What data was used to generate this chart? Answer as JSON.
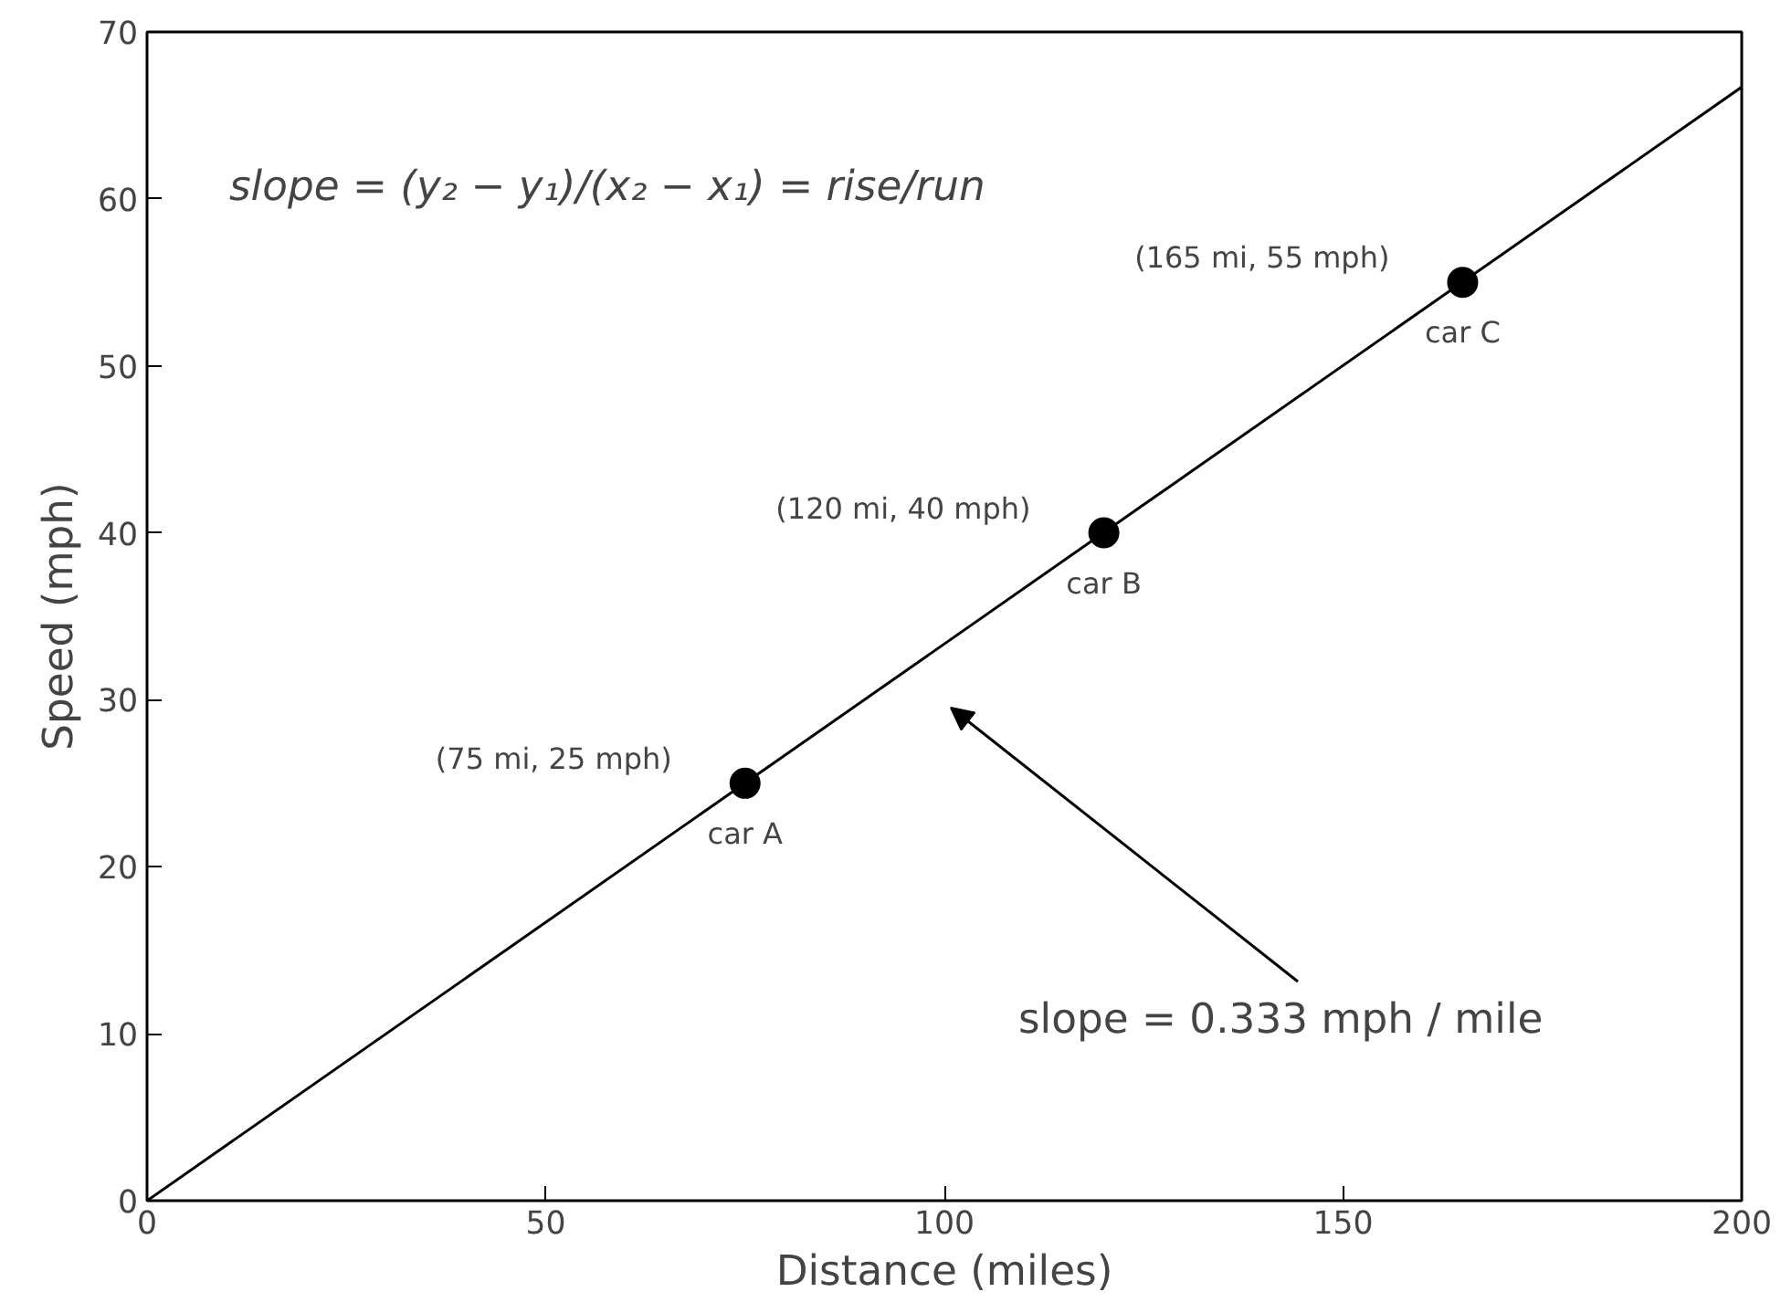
{
  "chart_data": {
    "type": "line",
    "xlabel": "Distance (miles)",
    "ylabel": "Speed (mph)",
    "xlim": [
      0,
      200
    ],
    "ylim": [
      0,
      70
    ],
    "xticks": [
      0,
      50,
      100,
      150,
      200
    ],
    "yticks": [
      0,
      10,
      20,
      30,
      40,
      50,
      60,
      70
    ],
    "grid": false,
    "series": [
      {
        "color": "#000000",
        "x": [
          0,
          200
        ],
        "values": [
          0,
          66.7
        ],
        "line_style": "solid",
        "marker": "none"
      },
      {
        "type": "scatter",
        "color": "#000000",
        "x": [
          75,
          120,
          165
        ],
        "values": [
          25,
          40,
          55
        ],
        "marker": "circle"
      }
    ],
    "annotations": [
      "slope = (y₂ − y₁)/(x₂ − x₁) = rise/run",
      {
        "text": "(75 mi, 25 mph)",
        "x": 75,
        "y": 25
      },
      {
        "text": "car A",
        "x": 75,
        "y": 25
      },
      {
        "text": "(120 mi, 40 mph)",
        "x": 120,
        "y": 40
      },
      {
        "text": "car B",
        "x": 120,
        "y": 40
      },
      {
        "text": "(165 mi, 55 mph)",
        "x": 165,
        "y": 55
      },
      {
        "text": "car C",
        "x": 165,
        "y": 55
      },
      "slope = 0.333 mph / mile"
    ]
  }
}
